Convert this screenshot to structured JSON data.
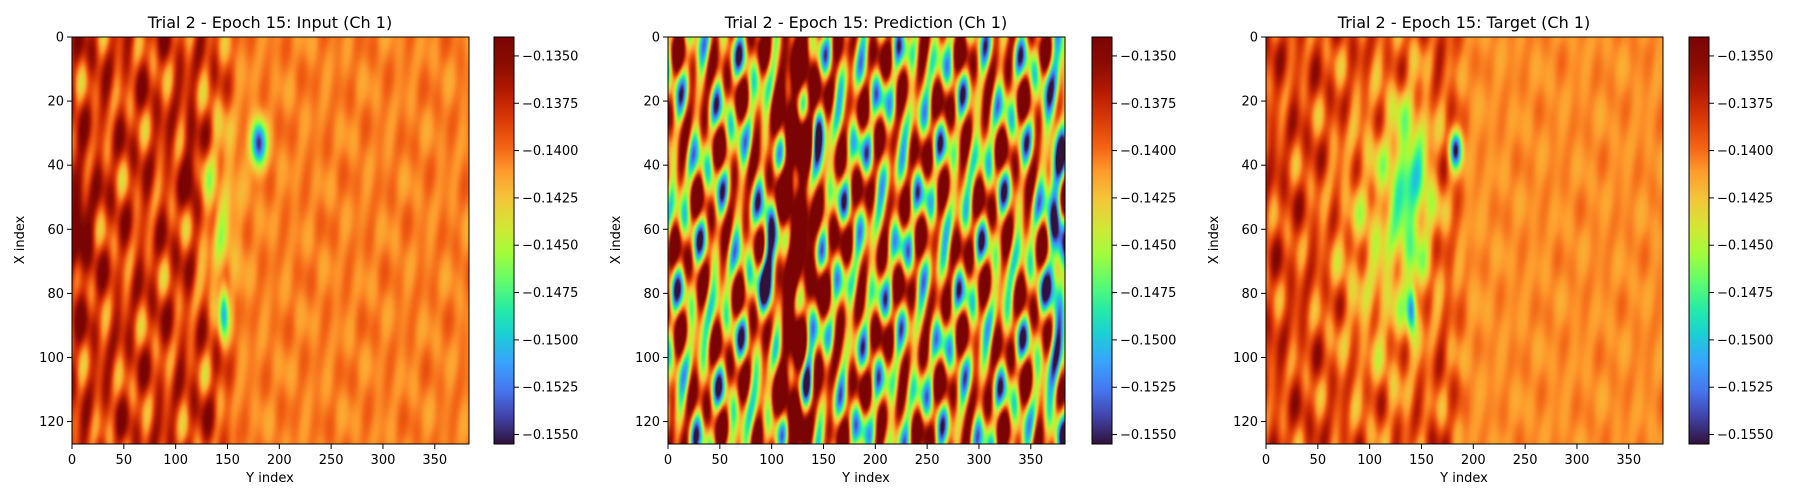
{
  "chart_data": [
    {
      "type": "heatmap",
      "title": "Trial 2 - Epoch 15: Input (Ch 1)",
      "xlabel": "Y index",
      "ylabel": "X index",
      "xlim": [
        0,
        383
      ],
      "ylim": [
        127,
        0
      ],
      "xticks": [
        "0",
        "50",
        "100",
        "150",
        "200",
        "250",
        "300",
        "350"
      ],
      "yticks": [
        "0",
        "20",
        "40",
        "60",
        "80",
        "100",
        "120"
      ],
      "colorbar": {
        "colormap": "turbo",
        "range": [
          -0.1555,
          -0.134
        ],
        "ticks": [
          "−0.1350",
          "−0.1375",
          "−0.1400",
          "−0.1425",
          "−0.1450",
          "−0.1475",
          "−0.1500",
          "−0.1525",
          "−0.1550"
        ]
      },
      "field": {
        "base": -0.1405,
        "front_y": 150,
        "noise_amp": 0.0028,
        "features": [
          {
            "x": 33,
            "y": 180,
            "sx": 5,
            "sy": 5,
            "amp": -0.014
          },
          {
            "x": 85,
            "y": 146,
            "sx": 6,
            "sy": 3,
            "amp": -0.009
          },
          {
            "x": 55,
            "y": 140,
            "sx": 22,
            "sy": 12,
            "amp": -0.0045
          },
          {
            "x": 60,
            "y": 5,
            "sx": 15,
            "sy": 10,
            "amp": 0.004
          },
          {
            "x": 40,
            "y": 115,
            "sx": 10,
            "sy": 5,
            "amp": 0.004
          }
        ]
      }
    },
    {
      "type": "heatmap",
      "title": "Trial 2 - Epoch 15: Prediction (Ch 1)",
      "xlabel": "Y index",
      "ylabel": "X index",
      "xlim": [
        0,
        383
      ],
      "ylim": [
        127,
        0
      ],
      "xticks": [
        "0",
        "50",
        "100",
        "150",
        "200",
        "250",
        "300",
        "350"
      ],
      "yticks": [
        "0",
        "20",
        "40",
        "60",
        "80",
        "100",
        "120"
      ],
      "colorbar": {
        "colormap": "turbo",
        "range": [
          -0.1555,
          -0.134
        ],
        "ticks": [
          "−0.1350",
          "−0.1375",
          "−0.1400",
          "−0.1425",
          "−0.1450",
          "−0.1475",
          "−0.1500",
          "−0.1525",
          "−0.1550"
        ]
      },
      "field": {
        "base": -0.1415,
        "front_y": 0,
        "noise_amp": 0.0085,
        "features": [
          {
            "x": 60,
            "y": 125,
            "sx": 70,
            "sy": 14,
            "amp": 0.012
          },
          {
            "x": 70,
            "y": 98,
            "sx": 12,
            "sy": 6,
            "amp": -0.016
          },
          {
            "x": 35,
            "y": 145,
            "sx": 10,
            "sy": 5,
            "amp": -0.014
          },
          {
            "x": 100,
            "y": 135,
            "sx": 15,
            "sy": 5,
            "amp": -0.015
          },
          {
            "x": 60,
            "y": 375,
            "sx": 45,
            "sy": 6,
            "amp": -0.01
          }
        ]
      }
    },
    {
      "type": "heatmap",
      "title": "Trial 2 - Epoch 15: Target (Ch 1)",
      "xlabel": "Y index",
      "ylabel": "X index",
      "xlim": [
        0,
        383
      ],
      "ylim": [
        127,
        0
      ],
      "xticks": [
        "0",
        "50",
        "100",
        "150",
        "200",
        "250",
        "300",
        "350"
      ],
      "yticks": [
        "0",
        "20",
        "40",
        "60",
        "80",
        "100",
        "120"
      ],
      "colorbar": {
        "colormap": "turbo",
        "range": [
          -0.1555,
          -0.134
        ],
        "ticks": [
          "−0.1350",
          "−0.1375",
          "−0.1400",
          "−0.1425",
          "−0.1450",
          "−0.1475",
          "−0.1500",
          "−0.1525",
          "−0.1550"
        ]
      },
      "field": {
        "base": -0.1408,
        "front_y": 185,
        "noise_amp": 0.0022,
        "features": [
          {
            "x": 35,
            "y": 183,
            "sx": 4,
            "sy": 4,
            "amp": -0.014
          },
          {
            "x": 85,
            "y": 140,
            "sx": 5,
            "sy": 3,
            "amp": -0.012
          },
          {
            "x": 45,
            "y": 140,
            "sx": 18,
            "sy": 14,
            "amp": -0.007
          },
          {
            "x": 65,
            "y": 115,
            "sx": 35,
            "sy": 35,
            "amp": -0.004
          }
        ]
      }
    }
  ]
}
